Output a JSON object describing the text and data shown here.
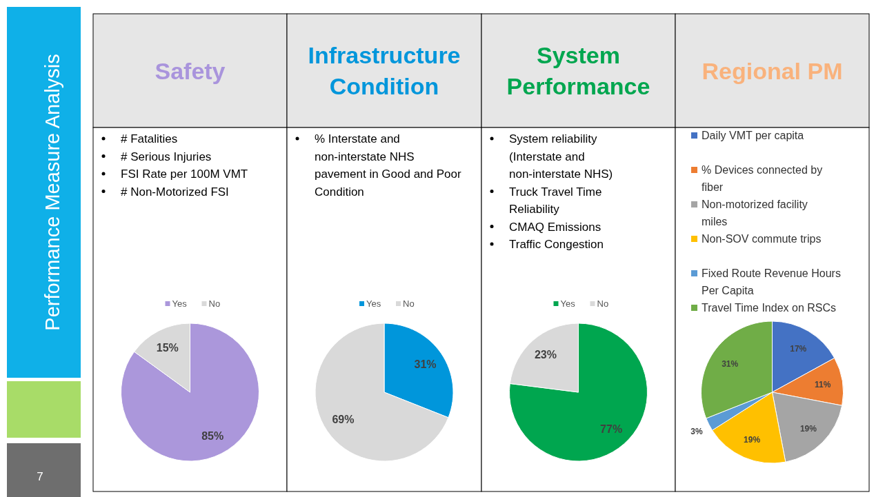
{
  "chart_data": [
    {
      "type": "other",
      "title": "Performance Measure Analysis",
      "annotations": [
        "7"
      ]
    },
    {
      "type": "pie",
      "title": "Safety",
      "annotations": [
        "# Fatalities",
        "# Serious Injuries",
        "FSI Rate per 100M VMT",
        "# Non-Motorized FSI"
      ],
      "categories": [
        "Yes",
        "No"
      ],
      "values": [
        85,
        15
      ],
      "colors": [
        "#ab97db",
        "#d9d9d9"
      ],
      "value_labels": [
        "85%",
        "15%"
      ],
      "legend": "top"
    },
    {
      "type": "pie",
      "title": "Infrastructure Condition",
      "annotations": [
        "% Interstate and non-interstate NHS pavement in Good and Poor Condition"
      ],
      "categories": [
        "Yes",
        "No"
      ],
      "values": [
        31,
        69
      ],
      "colors": [
        "#0096db",
        "#d9d9d9"
      ],
      "value_labels": [
        "31%",
        "69%"
      ],
      "legend": "top"
    },
    {
      "type": "pie",
      "title": "System Performance",
      "annotations": [
        "System reliability (Interstate and non-interstate NHS)",
        "Truck Travel Time Reliability",
        "CMAQ Emissions",
        "Traffic Congestion"
      ],
      "categories": [
        "Yes",
        "No"
      ],
      "values": [
        77,
        23
      ],
      "colors": [
        "#00a64f",
        "#d9d9d9"
      ],
      "value_labels": [
        "77%",
        "23%"
      ],
      "legend": "top"
    },
    {
      "type": "pie",
      "title": "Regional PM",
      "categories": [
        "Daily VMT per capita",
        "% Devices connected by fiber",
        "Non-motorized facility miles",
        "Non-SOV commute trips",
        "Fixed Route Revenue Hours Per Capita",
        "Travel Time Index on RSCs"
      ],
      "values": [
        17,
        11,
        19,
        19,
        3,
        31
      ],
      "colors": [
        "#4472c4",
        "#ed7d31",
        "#a5a5a5",
        "#ffc000",
        "#5b9bd5",
        "#70ad47"
      ],
      "value_labels": [
        "17%",
        "11%",
        "19%",
        "19%",
        "3%",
        "31%"
      ],
      "legend": "top"
    }
  ]
}
